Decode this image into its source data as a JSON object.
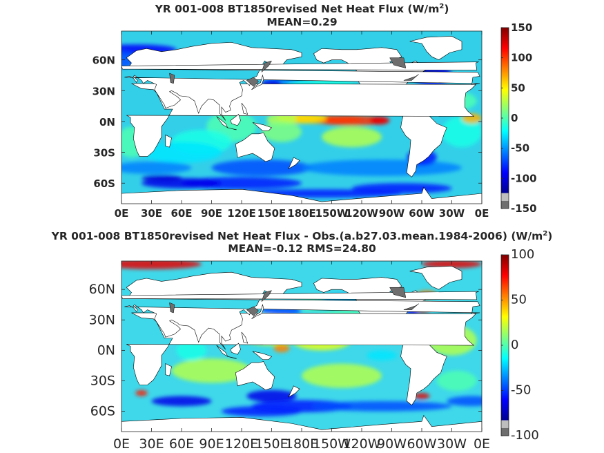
{
  "panels": [
    {
      "title_main": "YR 001-008 BT1850revised  Net Heat Flux (W/m",
      "title_sup": "2",
      "title_close": ")",
      "subtitle": "MEAN=0.29",
      "chart_data": {
        "type": "heatmap",
        "title": "YR 001-008 BT1850revised  Net Heat Flux (W/m2)",
        "subtitle": "MEAN=0.29",
        "x_ticks": [
          "0E",
          "30E",
          "60E",
          "90E",
          "120E",
          "150E",
          "180E",
          "150W",
          "120W",
          "90W",
          "60W",
          "30W",
          "0E"
        ],
        "y_ticks": [
          "60N",
          "30N",
          "0N",
          "30S",
          "60S"
        ],
        "y_tick_values": [
          60,
          30,
          0,
          -30,
          -60
        ],
        "lon_range": [
          0,
          360
        ],
        "lat_range": [
          -80,
          88
        ],
        "colorbar_ticks": [
          150,
          100,
          50,
          0,
          -50,
          -100,
          -150
        ],
        "colorbar_range": [
          -150,
          150
        ],
        "mean": 0.29
      }
    },
    {
      "title_main": "YR 001-008 BT1850revised  Net Heat Flux - Obs.(a.b27.03.mean.1984-2006) (W/m",
      "title_sup": "2",
      "title_close": ")",
      "subtitle": "MEAN=-0.12 RMS=24.80",
      "chart_data": {
        "type": "heatmap",
        "title": "YR 001-008 BT1850revised  Net Heat Flux - Obs.(a.b27.03.mean.1984-2006) (W/m2)",
        "subtitle": "MEAN=-0.12 RMS=24.80",
        "x_ticks": [
          "0E",
          "30E",
          "60E",
          "90E",
          "120E",
          "150E",
          "180E",
          "150W",
          "120W",
          "90W",
          "60W",
          "30W",
          "0E"
        ],
        "y_ticks": [
          "60N",
          "30N",
          "0N",
          "30S",
          "60S"
        ],
        "y_tick_values": [
          60,
          30,
          0,
          -30,
          -60
        ],
        "lon_range": [
          0,
          360
        ],
        "lat_range": [
          -80,
          88
        ],
        "colorbar_ticks": [
          100,
          50,
          0,
          -50,
          -100
        ],
        "colorbar_range": [
          -100,
          100
        ],
        "mean": -0.12,
        "rms": 24.8
      }
    }
  ],
  "colors": {
    "colormap": [
      "#00008f",
      "#0000ff",
      "#0080ff",
      "#00ffff",
      "#80ff80",
      "#ffff00",
      "#ff8000",
      "#ff0000",
      "#800000"
    ],
    "land": "#ffffff",
    "masked": "#bebebe",
    "masked_dark": "#6e6e6e",
    "coast": "#000000"
  }
}
